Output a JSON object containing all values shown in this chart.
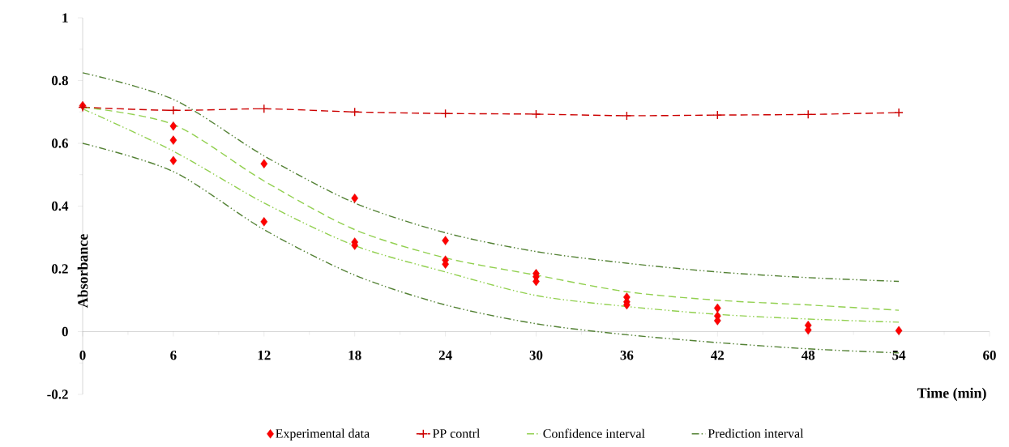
{
  "chart_data": {
    "type": "line",
    "xlabel": "Time (min)",
    "ylabel": "Absorbance",
    "xlim": [
      0,
      60
    ],
    "ylim": [
      -0.2,
      1
    ],
    "xticks": [
      0,
      6,
      12,
      18,
      24,
      30,
      36,
      42,
      48,
      54,
      60
    ],
    "yticks": [
      -0.2,
      0,
      0.2,
      0.4,
      0.6,
      0.8,
      1
    ],
    "grid": false,
    "legend": "bottom",
    "series": [
      {
        "name": "Experimental data",
        "type": "scatter",
        "marker": "diamond",
        "color": "#ff0000",
        "x": [
          0,
          6,
          6,
          6,
          12,
          12,
          18,
          18,
          18,
          24,
          24,
          24,
          30,
          30,
          30,
          36,
          36,
          36,
          42,
          42,
          42,
          48,
          48,
          54
        ],
        "values": [
          0.72,
          0.655,
          0.61,
          0.545,
          0.535,
          0.35,
          0.425,
          0.285,
          0.275,
          0.29,
          0.228,
          0.215,
          0.185,
          0.175,
          0.16,
          0.11,
          0.095,
          0.085,
          0.075,
          0.05,
          0.035,
          0.02,
          0.005,
          0.003
        ]
      },
      {
        "name": "PP contrl",
        "marker": "cross",
        "line_style": "dashed",
        "color": "#cc0000",
        "x": [
          0,
          6,
          12,
          18,
          24,
          30,
          36,
          42,
          48,
          54
        ],
        "values": [
          0.715,
          0.705,
          0.71,
          0.7,
          0.695,
          0.693,
          0.688,
          0.69,
          0.692,
          0.698
        ]
      },
      {
        "name": "Confidence interval",
        "marker": "none",
        "line_style": "dashdotdotted",
        "color": "#92d050",
        "x": [
          0,
          6,
          12,
          18,
          24,
          30,
          36,
          42,
          48,
          54
        ],
        "values": [
          0.71,
          0.575,
          0.41,
          0.274,
          0.19,
          0.115,
          0.08,
          0.055,
          0.04,
          0.03
        ]
      },
      {
        "name": "Prediction interval",
        "marker": "none",
        "line_style": "dashdotdotted",
        "color": "#548235",
        "x": [
          0,
          6,
          12,
          18,
          24,
          30,
          36,
          42,
          48,
          54
        ],
        "values": [
          0.6,
          0.51,
          0.325,
          0.18,
          0.085,
          0.025,
          -0.01,
          -0.035,
          -0.055,
          -0.068
        ]
      },
      {
        "marker": "none",
        "line_style": "dashed",
        "color": "#92d050",
        "x": [
          0,
          6,
          12,
          18,
          24,
          30,
          36,
          42,
          48,
          54
        ],
        "values": [
          0.715,
          0.66,
          0.48,
          0.325,
          0.235,
          0.18,
          0.127,
          0.1,
          0.085,
          0.068
        ]
      },
      {
        "marker": "none",
        "line_style": "dashdotdotted",
        "color": "#548235",
        "x": [
          0,
          6,
          12,
          18,
          24,
          30,
          36,
          42,
          48,
          54
        ],
        "values": [
          0.825,
          0.74,
          0.56,
          0.41,
          0.315,
          0.255,
          0.218,
          0.19,
          0.172,
          0.16
        ]
      }
    ]
  }
}
